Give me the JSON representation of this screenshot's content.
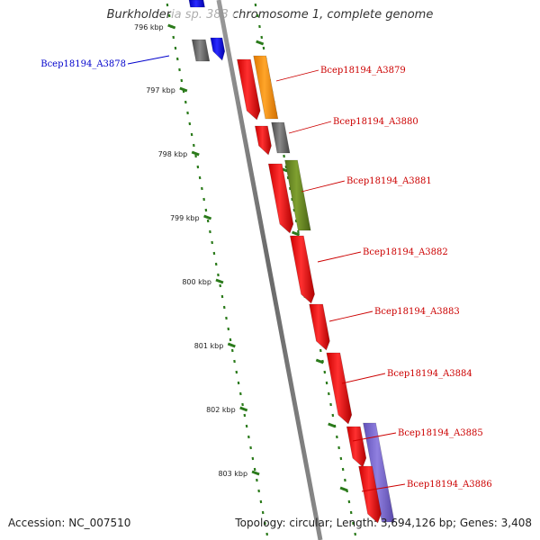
{
  "title": "Burkholderia sp. 383 chromosome 1, complete genome",
  "footer": {
    "accession": "Accession: NC_007510",
    "summary": "Topology: circular; Length: 3,694,126 bp; Genes: 3,408"
  },
  "colors": {
    "backbone": "#7a7a7a",
    "tick_dots": "#2a7a1a",
    "cds": "#ff1a1a",
    "label_red": "#cc0000",
    "label_blue": "#0000cc",
    "gene_blue": "#1a1aff",
    "gray_feature": "#6a6a6a",
    "orange_feature": "#ff9a10",
    "olive_feature": "#6b8e23",
    "purple_feature": "#7b68cc"
  },
  "ticks": [
    "796 kbp",
    "797 kbp",
    "798 kbp",
    "799 kbp",
    "800 kbp",
    "801 kbp",
    "802 kbp",
    "803 kbp"
  ],
  "genes": [
    {
      "label": "Bcep18194_A3878",
      "color": "blue"
    },
    {
      "label": "Bcep18194_A3879",
      "color": "red"
    },
    {
      "label": "Bcep18194_A3880",
      "color": "red"
    },
    {
      "label": "Bcep18194_A3881",
      "color": "red"
    },
    {
      "label": "Bcep18194_A3882",
      "color": "red"
    },
    {
      "label": "Bcep18194_A3883",
      "color": "red"
    },
    {
      "label": "Bcep18194_A3884",
      "color": "red"
    },
    {
      "label": "Bcep18194_A3885",
      "color": "red"
    },
    {
      "label": "Bcep18194_A3886",
      "color": "red"
    }
  ]
}
